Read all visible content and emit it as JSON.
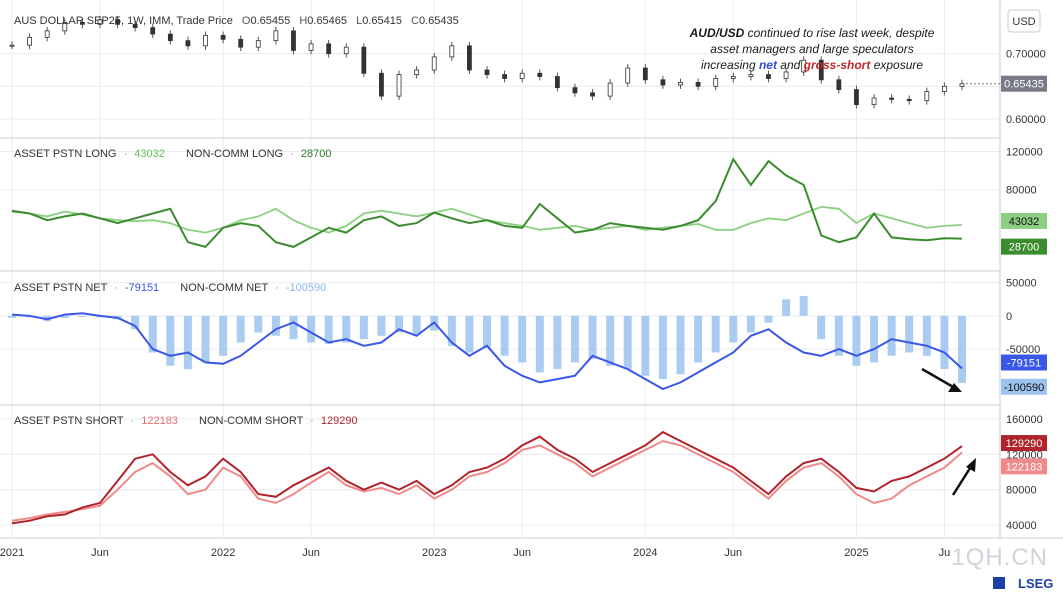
{
  "currency_badge": "USD",
  "watermark": "1QH.CN",
  "brand": "LSEG",
  "annotation": {
    "line1_bold": "AUD/USD",
    "line1_rest": " continued to rise last week, despite",
    "line2": "asset managers and large speculators",
    "line3_pre": "increasing ",
    "line3_net": "net",
    "line3_mid": " and ",
    "line3_gross": "gross-short",
    "line3_post": " exposure"
  },
  "x_axis_labels": [
    "2021",
    "Jun",
    "2022",
    "Jun",
    "2023",
    "Jun",
    "2024",
    "Jun",
    "2025",
    "Ju"
  ],
  "colors": {
    "grid": "#e9ecf1",
    "asset_long": "#8ccf82",
    "noncomm_long": "#3b8c2e",
    "asset_net": "#3a57e8",
    "noncomm_net_bars": "#9cc3ee",
    "asset_short": "#f08a8a",
    "noncomm_short": "#b0242c",
    "price_label_bg": "#787b86",
    "price_bars": "#555555"
  },
  "chart_data": [
    {
      "type": "candlestick",
      "title": "AUS DOLLAR SEP25, 1W, IMM, Trade Price",
      "ohlc_text": {
        "O": "0.65455",
        "H": "0.65465",
        "L": "0.65415",
        "C": "0.65435"
      },
      "last_value": "0.65435",
      "ylim": [
        0.58,
        0.77
      ],
      "y_ticks": [
        "0.70000",
        "0.65000",
        "0.60000"
      ],
      "x": [
        "2021-01",
        "2021-02",
        "2021-03",
        "2021-04",
        "2021-05",
        "2021-06",
        "2021-07",
        "2021-08",
        "2021-09",
        "2021-10",
        "2021-11",
        "2021-12",
        "2022-01",
        "2022-02",
        "2022-03",
        "2022-04",
        "2022-05",
        "2022-06",
        "2022-07",
        "2022-08",
        "2022-09",
        "2022-10",
        "2022-11",
        "2022-12",
        "2023-01",
        "2023-02",
        "2023-03",
        "2023-04",
        "2023-05",
        "2023-06",
        "2023-07",
        "2023-08",
        "2023-09",
        "2023-10",
        "2023-11",
        "2023-12",
        "2024-01",
        "2024-02",
        "2024-03",
        "2024-04",
        "2024-05",
        "2024-06",
        "2024-07",
        "2024-08",
        "2024-09",
        "2024-10",
        "2024-11",
        "2024-12",
        "2025-01",
        "2025-02",
        "2025-03",
        "2025-04",
        "2025-05",
        "2025-06",
        "2025-07"
      ],
      "close": [
        0.713,
        0.725,
        0.735,
        0.748,
        0.745,
        0.752,
        0.745,
        0.74,
        0.73,
        0.72,
        0.712,
        0.728,
        0.722,
        0.71,
        0.72,
        0.735,
        0.705,
        0.715,
        0.7,
        0.71,
        0.67,
        0.635,
        0.668,
        0.675,
        0.695,
        0.712,
        0.675,
        0.668,
        0.662,
        0.67,
        0.665,
        0.648,
        0.64,
        0.635,
        0.655,
        0.678,
        0.66,
        0.652,
        0.656,
        0.65,
        0.662,
        0.665,
        0.668,
        0.662,
        0.672,
        0.69,
        0.66,
        0.645,
        0.622,
        0.632,
        0.63,
        0.628,
        0.642,
        0.65,
        0.654
      ]
    },
    {
      "type": "line",
      "title": "ASSET PSTN LONG / NON-COMM LONG",
      "ylim": [
        0,
        130000
      ],
      "y_ticks": [
        "120000",
        "80000"
      ],
      "x": [
        "2021-01",
        "2021-02",
        "2021-03",
        "2021-04",
        "2021-05",
        "2021-06",
        "2021-07",
        "2021-08",
        "2021-09",
        "2021-10",
        "2021-11",
        "2021-12",
        "2022-01",
        "2022-02",
        "2022-03",
        "2022-04",
        "2022-05",
        "2022-06",
        "2022-07",
        "2022-08",
        "2022-09",
        "2022-10",
        "2022-11",
        "2022-12",
        "2023-01",
        "2023-02",
        "2023-03",
        "2023-04",
        "2023-05",
        "2023-06",
        "2023-07",
        "2023-08",
        "2023-09",
        "2023-10",
        "2023-11",
        "2023-12",
        "2024-01",
        "2024-02",
        "2024-03",
        "2024-04",
        "2024-05",
        "2024-06",
        "2024-07",
        "2024-08",
        "2024-09",
        "2024-10",
        "2024-11",
        "2024-12",
        "2025-01",
        "2025-02",
        "2025-03",
        "2025-04",
        "2025-05",
        "2025-06",
        "2025-07"
      ],
      "series": [
        {
          "name": "ASSET PSTN LONG",
          "last": "43032",
          "values": [
            57000,
            55000,
            52000,
            57000,
            54000,
            50000,
            48000,
            47000,
            48000,
            45000,
            38000,
            35000,
            40000,
            48000,
            52000,
            60000,
            48000,
            40000,
            35000,
            42000,
            55000,
            58000,
            55000,
            52000,
            56000,
            60000,
            54000,
            48000,
            45000,
            42000,
            38000,
            40000,
            42000,
            38000,
            40000,
            42000,
            38000,
            40000,
            42000,
            44000,
            38000,
            38000,
            45000,
            50000,
            48000,
            55000,
            62000,
            60000,
            45000,
            55000,
            50000,
            45000,
            40000,
            42000,
            43032
          ]
        },
        {
          "name": "NON-COMM LONG",
          "last": "28700",
          "values": [
            58000,
            55000,
            48000,
            52000,
            55000,
            50000,
            45000,
            50000,
            55000,
            60000,
            25000,
            20000,
            40000,
            45000,
            42000,
            25000,
            20000,
            30000,
            40000,
            35000,
            48000,
            52000,
            42000,
            45000,
            56000,
            50000,
            45000,
            48000,
            42000,
            40000,
            65000,
            50000,
            35000,
            38000,
            45000,
            42000,
            40000,
            38000,
            42000,
            48000,
            68000,
            112000,
            85000,
            110000,
            95000,
            85000,
            32000,
            25000,
            30000,
            55000,
            30000,
            28000,
            27000,
            29000,
            28700
          ]
        }
      ]
    },
    {
      "type": "bar+line",
      "title": "ASSET PSTN NET / NON-COMM NET",
      "ylim": [
        -125000,
        60000
      ],
      "y_ticks": [
        "50000",
        "0",
        "-50000"
      ],
      "x": [
        "2021-01",
        "2021-02",
        "2021-03",
        "2021-04",
        "2021-05",
        "2021-06",
        "2021-07",
        "2021-08",
        "2021-09",
        "2021-10",
        "2021-11",
        "2021-12",
        "2022-01",
        "2022-02",
        "2022-03",
        "2022-04",
        "2022-05",
        "2022-06",
        "2022-07",
        "2022-08",
        "2022-09",
        "2022-10",
        "2022-11",
        "2022-12",
        "2023-01",
        "2023-02",
        "2023-03",
        "2023-04",
        "2023-05",
        "2023-06",
        "2023-07",
        "2023-08",
        "2023-09",
        "2023-10",
        "2023-11",
        "2023-12",
        "2024-01",
        "2024-02",
        "2024-03",
        "2024-04",
        "2024-05",
        "2024-06",
        "2024-07",
        "2024-08",
        "2024-09",
        "2024-10",
        "2024-11",
        "2024-12",
        "2025-01",
        "2025-02",
        "2025-03",
        "2025-04",
        "2025-05",
        "2025-06",
        "2025-07"
      ],
      "series": [
        {
          "name": "ASSET PSTN NET",
          "last": "-79151",
          "style": "line",
          "values": [
            2000,
            0,
            -5000,
            2000,
            4000,
            0,
            -3000,
            -15000,
            -50000,
            -60000,
            -55000,
            -70000,
            -72000,
            -60000,
            -40000,
            -20000,
            -10000,
            -25000,
            -40000,
            -35000,
            -45000,
            -40000,
            -20000,
            -30000,
            -10000,
            -40000,
            -60000,
            -45000,
            -75000,
            -90000,
            -100000,
            -95000,
            -90000,
            -60000,
            -70000,
            -80000,
            -95000,
            -110000,
            -100000,
            -85000,
            -70000,
            -55000,
            -30000,
            -20000,
            -40000,
            -55000,
            -60000,
            -50000,
            -60000,
            -50000,
            -35000,
            -40000,
            -45000,
            -55000,
            -79151
          ]
        },
        {
          "name": "NON-COMM NET",
          "last": "-100590",
          "style": "bar",
          "values": [
            -3000,
            -2000,
            -8000,
            -3000,
            0,
            -2000,
            -5000,
            -20000,
            -55000,
            -75000,
            -80000,
            -70000,
            -60000,
            -40000,
            -25000,
            -30000,
            -35000,
            -40000,
            -42000,
            -40000,
            -35000,
            -30000,
            -25000,
            -28000,
            -22000,
            -45000,
            -55000,
            -48000,
            -60000,
            -70000,
            -85000,
            -80000,
            -70000,
            -65000,
            -75000,
            -80000,
            -90000,
            -95000,
            -88000,
            -70000,
            -55000,
            -40000,
            -25000,
            -10000,
            25000,
            30000,
            -35000,
            -60000,
            -75000,
            -70000,
            -60000,
            -55000,
            -60000,
            -80000,
            -100590
          ]
        }
      ]
    },
    {
      "type": "line",
      "title": "ASSET PSTN SHORT / NON-COMM SHORT",
      "ylim": [
        30000,
        170000
      ],
      "y_ticks": [
        "160000",
        "120000",
        "80000",
        "40000"
      ],
      "x": [
        "2021-01",
        "2021-02",
        "2021-03",
        "2021-04",
        "2021-05",
        "2021-06",
        "2021-07",
        "2021-08",
        "2021-09",
        "2021-10",
        "2021-11",
        "2021-12",
        "2022-01",
        "2022-02",
        "2022-03",
        "2022-04",
        "2022-05",
        "2022-06",
        "2022-07",
        "2022-08",
        "2022-09",
        "2022-10",
        "2022-11",
        "2022-12",
        "2023-01",
        "2023-02",
        "2023-03",
        "2023-04",
        "2023-05",
        "2023-06",
        "2023-07",
        "2023-08",
        "2023-09",
        "2023-10",
        "2023-11",
        "2023-12",
        "2024-01",
        "2024-02",
        "2024-03",
        "2024-04",
        "2024-05",
        "2024-06",
        "2024-07",
        "2024-08",
        "2024-09",
        "2024-10",
        "2024-11",
        "2024-12",
        "2025-01",
        "2025-02",
        "2025-03",
        "2025-04",
        "2025-05",
        "2025-06",
        "2025-07"
      ],
      "series": [
        {
          "name": "ASSET PSTN SHORT",
          "last": "122183",
          "values": [
            45000,
            48000,
            52000,
            55000,
            58000,
            62000,
            80000,
            100000,
            110000,
            95000,
            75000,
            80000,
            105000,
            95000,
            70000,
            65000,
            75000,
            88000,
            100000,
            85000,
            78000,
            82000,
            75000,
            85000,
            70000,
            80000,
            95000,
            100000,
            110000,
            125000,
            130000,
            120000,
            110000,
            95000,
            105000,
            115000,
            125000,
            135000,
            130000,
            120000,
            110000,
            100000,
            85000,
            70000,
            90000,
            105000,
            110000,
            95000,
            75000,
            65000,
            70000,
            85000,
            95000,
            105000,
            122183
          ]
        },
        {
          "name": "NON-COMM SHORT",
          "last": "129290",
          "values": [
            42000,
            45000,
            50000,
            52000,
            60000,
            65000,
            90000,
            115000,
            120000,
            100000,
            85000,
            95000,
            115000,
            100000,
            75000,
            72000,
            85000,
            95000,
            105000,
            90000,
            80000,
            88000,
            80000,
            90000,
            75000,
            85000,
            100000,
            105000,
            115000,
            130000,
            140000,
            125000,
            115000,
            100000,
            110000,
            120000,
            130000,
            145000,
            135000,
            125000,
            115000,
            105000,
            90000,
            75000,
            95000,
            110000,
            115000,
            100000,
            82000,
            78000,
            90000,
            95000,
            105000,
            115000,
            129290
          ]
        }
      ]
    }
  ]
}
